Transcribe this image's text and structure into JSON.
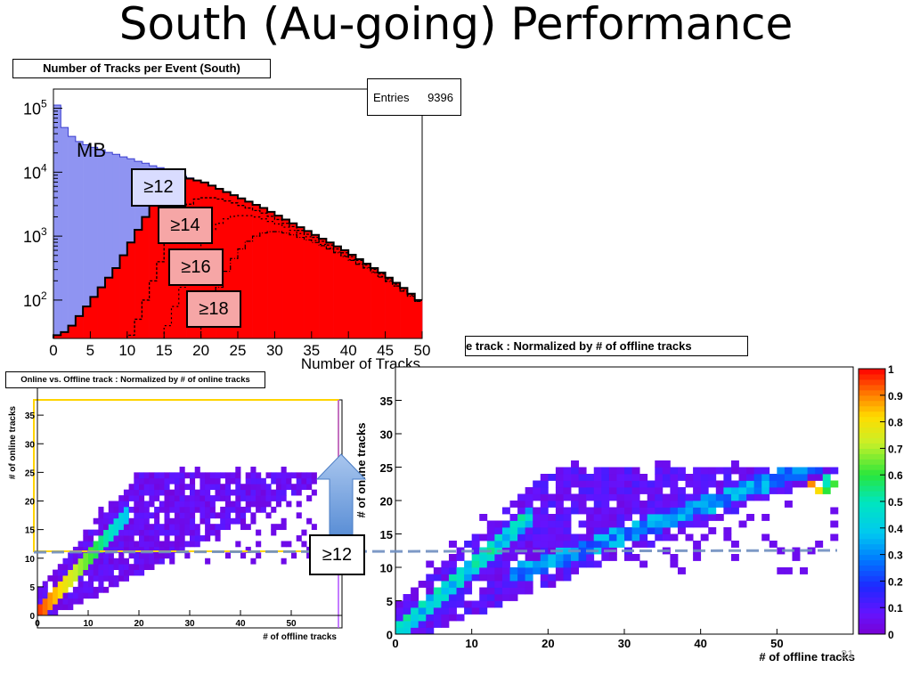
{
  "slide": {
    "title": "South (Au-going) Performance",
    "page_number": "21"
  },
  "colors": {
    "mb_fill": "#8f94f2",
    "cut_fill": "#ff0000",
    "frame": "#000000",
    "highlight": "#ffd400"
  },
  "top_hist": {
    "title": "Number of Tracks per Event (South)",
    "stats_label": "Entries",
    "stats_value": "9396",
    "mb_label": "MB",
    "cut_labels": [
      "≥12",
      "≥14",
      "≥16",
      "≥18"
    ]
  },
  "left_hist": {
    "title": "Online vs. Offline track : Normalized by # of online tracks"
  },
  "right_hist": {
    "title": "e track : Normalized by # of offline tracks"
  },
  "threshold_label": "≥12",
  "chart_data": [
    {
      "type": "bar",
      "title": "Number of Tracks per Event (South)",
      "xlabel": "Number of Tracks",
      "ylabel": "",
      "xlim": [
        0,
        50
      ],
      "ylim_log10": [
        1.4,
        5.3
      ],
      "yscale": "log",
      "x_ticks": [
        "0",
        "5",
        "10",
        "15",
        "20",
        "25",
        "30",
        "35",
        "40",
        "45",
        "50"
      ],
      "y_ticks": [
        {
          "base": "10",
          "exp": "5",
          "value": 100000
        },
        {
          "base": "10",
          "exp": "4",
          "value": 10000
        },
        {
          "base": "10",
          "exp": "3",
          "value": 1000
        },
        {
          "base": "10",
          "exp": "2",
          "value": 100
        }
      ],
      "series": [
        {
          "name": "MB",
          "log_values": [
            5.05,
            4.7,
            4.56,
            4.48,
            4.43,
            4.39,
            4.35,
            4.31,
            4.28,
            4.24,
            4.21,
            4.17,
            4.14,
            4.1,
            4.07,
            4.03,
            3.99,
            3.95,
            3.91,
            3.87,
            3.84,
            3.79,
            3.74,
            3.69,
            3.64,
            3.59,
            3.54,
            3.49,
            3.44,
            3.38,
            3.32,
            3.26,
            3.2,
            3.14,
            3.08,
            3.02,
            2.96,
            2.9,
            2.84,
            2.78,
            2.71,
            2.64,
            2.57,
            2.5,
            2.43,
            2.35,
            2.27,
            2.19,
            2.1,
            2.0
          ]
        },
        {
          "name": "≥12",
          "log_values": [
            1.45,
            1.5,
            1.6,
            1.75,
            1.9,
            2.05,
            2.2,
            2.35,
            2.5,
            2.7,
            2.9,
            3.1,
            3.3,
            3.55,
            3.75,
            3.85,
            3.9,
            3.92,
            3.9,
            3.87,
            3.84,
            3.79,
            3.74,
            3.69,
            3.64,
            3.59,
            3.54,
            3.49,
            3.44,
            3.38,
            3.32,
            3.26,
            3.2,
            3.14,
            3.08,
            3.02,
            2.96,
            2.9,
            2.84,
            2.78,
            2.71,
            2.64,
            2.57,
            2.5,
            2.43,
            2.35,
            2.27,
            2.19,
            2.1,
            2.0
          ]
        },
        {
          "name": "≥14",
          "log_values": [
            null,
            null,
            null,
            null,
            null,
            null,
            null,
            null,
            null,
            null,
            1.45,
            1.7,
            2.0,
            2.3,
            2.6,
            2.9,
            3.15,
            3.35,
            3.5,
            3.58,
            3.6,
            3.6,
            3.58,
            3.55,
            3.52,
            3.48,
            3.44,
            3.4,
            3.36,
            3.31,
            3.26,
            3.2,
            3.15,
            3.09,
            3.03,
            2.98,
            2.92,
            2.86,
            2.8,
            2.74,
            2.68,
            2.62,
            2.55,
            2.48,
            2.41,
            2.33,
            2.25,
            2.18,
            2.09,
            2.0
          ]
        },
        {
          "name": "≥16",
          "log_values": [
            null,
            null,
            null,
            null,
            null,
            null,
            null,
            null,
            null,
            null,
            null,
            null,
            null,
            null,
            null,
            1.6,
            1.9,
            2.2,
            2.5,
            2.75,
            2.95,
            3.1,
            3.2,
            3.27,
            3.31,
            3.32,
            3.32,
            3.3,
            3.27,
            3.23,
            3.19,
            3.14,
            3.09,
            3.04,
            2.99,
            2.93,
            2.87,
            2.81,
            2.75,
            2.69,
            2.63,
            2.57,
            2.51,
            2.44,
            2.37,
            2.3,
            2.22,
            2.15,
            2.07,
            1.98
          ]
        },
        {
          "name": "≥18",
          "log_values": [
            null,
            null,
            null,
            null,
            null,
            null,
            null,
            null,
            null,
            null,
            null,
            null,
            null,
            null,
            null,
            null,
            null,
            null,
            null,
            null,
            1.6,
            1.9,
            2.2,
            2.45,
            2.65,
            2.8,
            2.92,
            3.0,
            3.05,
            3.07,
            3.07,
            3.05,
            3.02,
            2.98,
            2.94,
            2.9,
            2.85,
            2.8,
            2.74,
            2.68,
            2.62,
            2.56,
            2.5,
            2.43,
            2.36,
            2.29,
            2.22,
            2.14,
            2.06,
            1.98
          ]
        }
      ]
    },
    {
      "type": "heatmap",
      "title": "Online vs. Offline track : Normalized by # of online tracks",
      "xlabel": "# of offline tracks",
      "ylabel": "# of online tracks",
      "xlim": [
        0,
        60
      ],
      "ylim": [
        0,
        40
      ],
      "x_ticks": [
        "0",
        "10",
        "20",
        "30",
        "40",
        "50"
      ],
      "y_ticks": [
        "0",
        "5",
        "10",
        "15",
        "20",
        "25",
        "30",
        "35"
      ]
    },
    {
      "type": "heatmap",
      "title": "Online vs. Offline track : Normalized by # of offline tracks",
      "xlabel": "# of offline tracks",
      "ylabel": "# of online tracks",
      "xlim": [
        0,
        60
      ],
      "ylim": [
        0,
        40
      ],
      "x_ticks": [
        "0",
        "10",
        "20",
        "30",
        "40",
        "50"
      ],
      "y_ticks": [
        "0",
        "5",
        "10",
        "15",
        "20",
        "25",
        "30",
        "35"
      ],
      "z_ticks": [
        "0",
        "0.1",
        "0.2",
        "0.3",
        "0.4",
        "0.5",
        "0.6",
        "0.7",
        "0.8",
        "0.9",
        "1"
      ],
      "zlim": [
        0,
        1
      ]
    }
  ]
}
